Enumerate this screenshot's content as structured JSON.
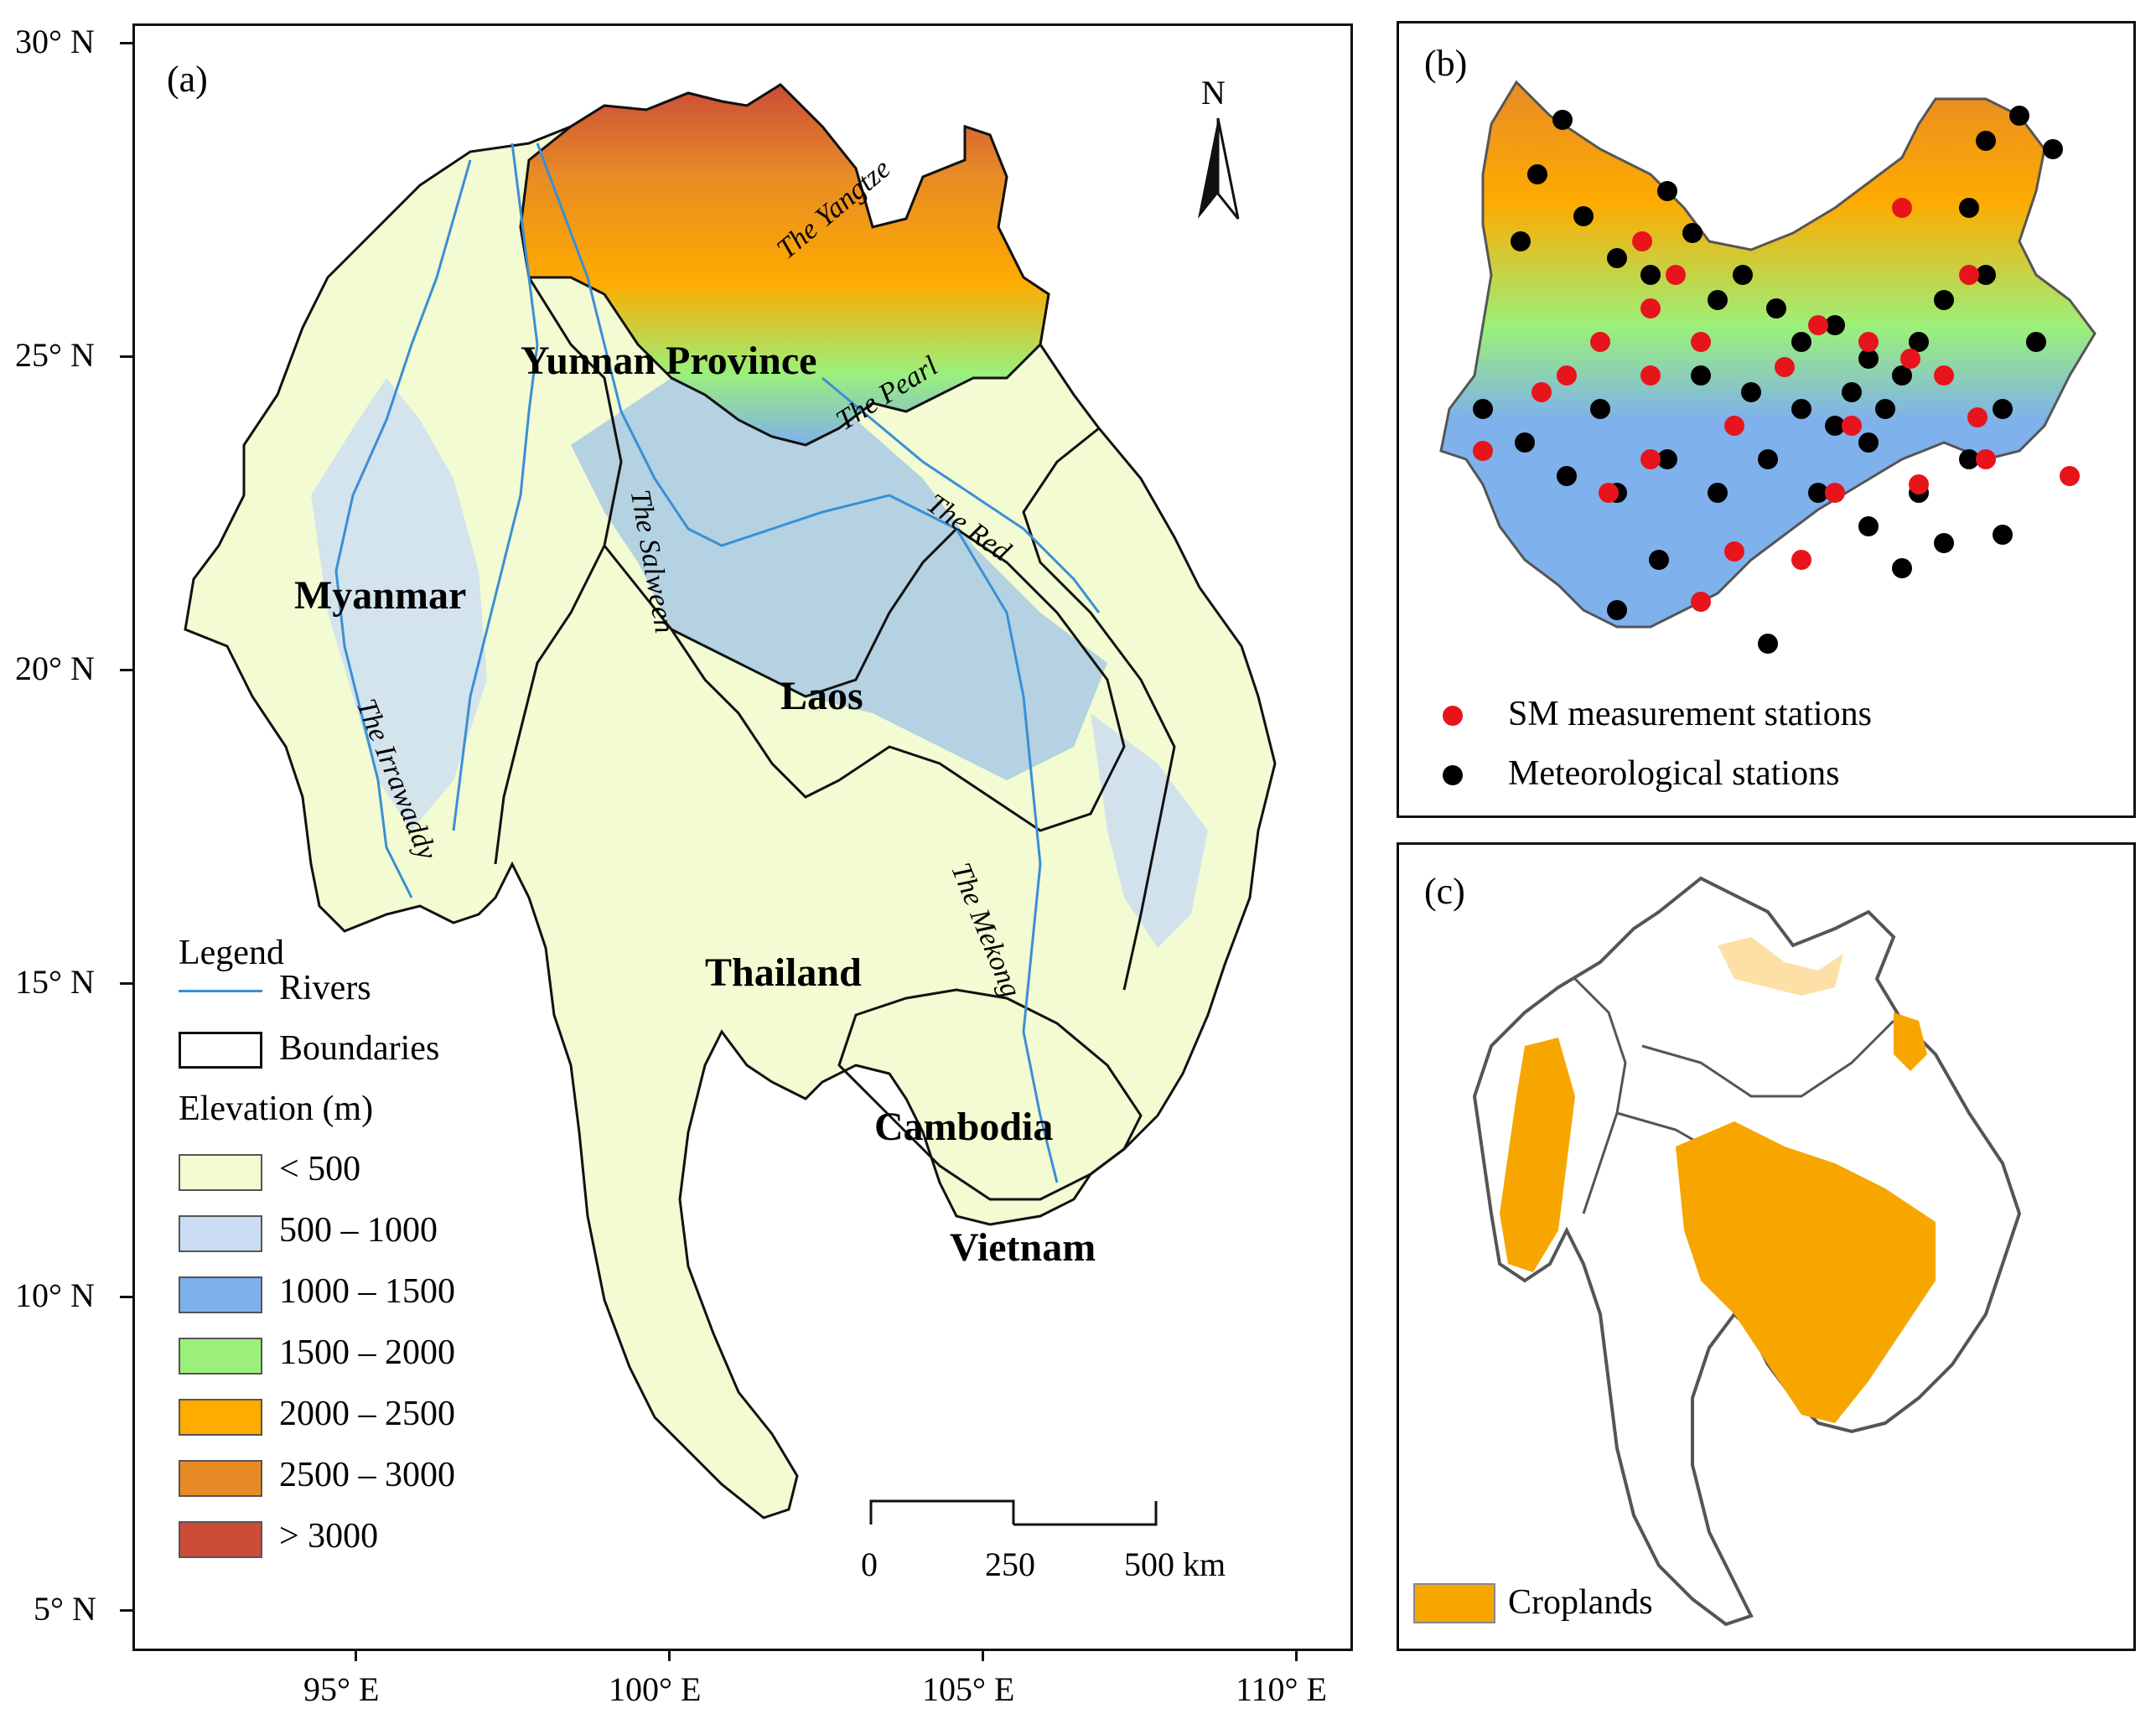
{
  "panel_a": {
    "label": "(a)",
    "north_label": "N",
    "lat_ticks": [
      "30° N",
      "25° N",
      "20° N",
      "15° N",
      "10° N",
      "5° N"
    ],
    "lon_ticks": [
      "95° E",
      "100° E",
      "105° E",
      "110° E"
    ],
    "countries": {
      "yunnan": "Yunnan Province",
      "myanmar": "Myanmar",
      "laos": "Laos",
      "thailand": "Thailand",
      "cambodia": "Cambodia",
      "vietnam": "Vietnam"
    },
    "rivers": {
      "yangtze": "The Yangtze",
      "pearl": "The Pearl",
      "red": "The Red",
      "salween": "The Salween",
      "irrawaddy": "The Irrawaddy",
      "mekong": "The Mekong"
    },
    "legend": {
      "title": "Legend",
      "rivers": "Rivers",
      "boundaries": "Boundaries",
      "elevation_title": "Elevation (m)",
      "classes": [
        {
          "label": "< 500",
          "color": "#f3fbd2"
        },
        {
          "label": "500 – 1000",
          "color": "#c9dcf4"
        },
        {
          "label": "1000 – 1500",
          "color": "#7fb1ec"
        },
        {
          "label": "1500 – 2000",
          "color": "#9bf07a"
        },
        {
          "label": "2000 – 2500",
          "color": "#ffab00"
        },
        {
          "label": "2500 – 3000",
          "color": "#e78b26"
        },
        {
          "label": "> 3000",
          "color": "#cc4c38"
        }
      ]
    },
    "scalebar": {
      "labels": [
        "0",
        "250",
        "500 km"
      ]
    },
    "colors": {
      "river": "#3a8fd6",
      "boundary": "#111111"
    }
  },
  "panel_b": {
    "label": "(b)",
    "legend": {
      "sm": "SM measurement stations",
      "met": "Meteorological stations"
    },
    "colors": {
      "sm": "#e8141c",
      "met": "#000000"
    }
  },
  "panel_c": {
    "label": "(c)",
    "legend": {
      "croplands": "Croplands"
    },
    "colors": {
      "croplands": "#f7a600"
    }
  }
}
